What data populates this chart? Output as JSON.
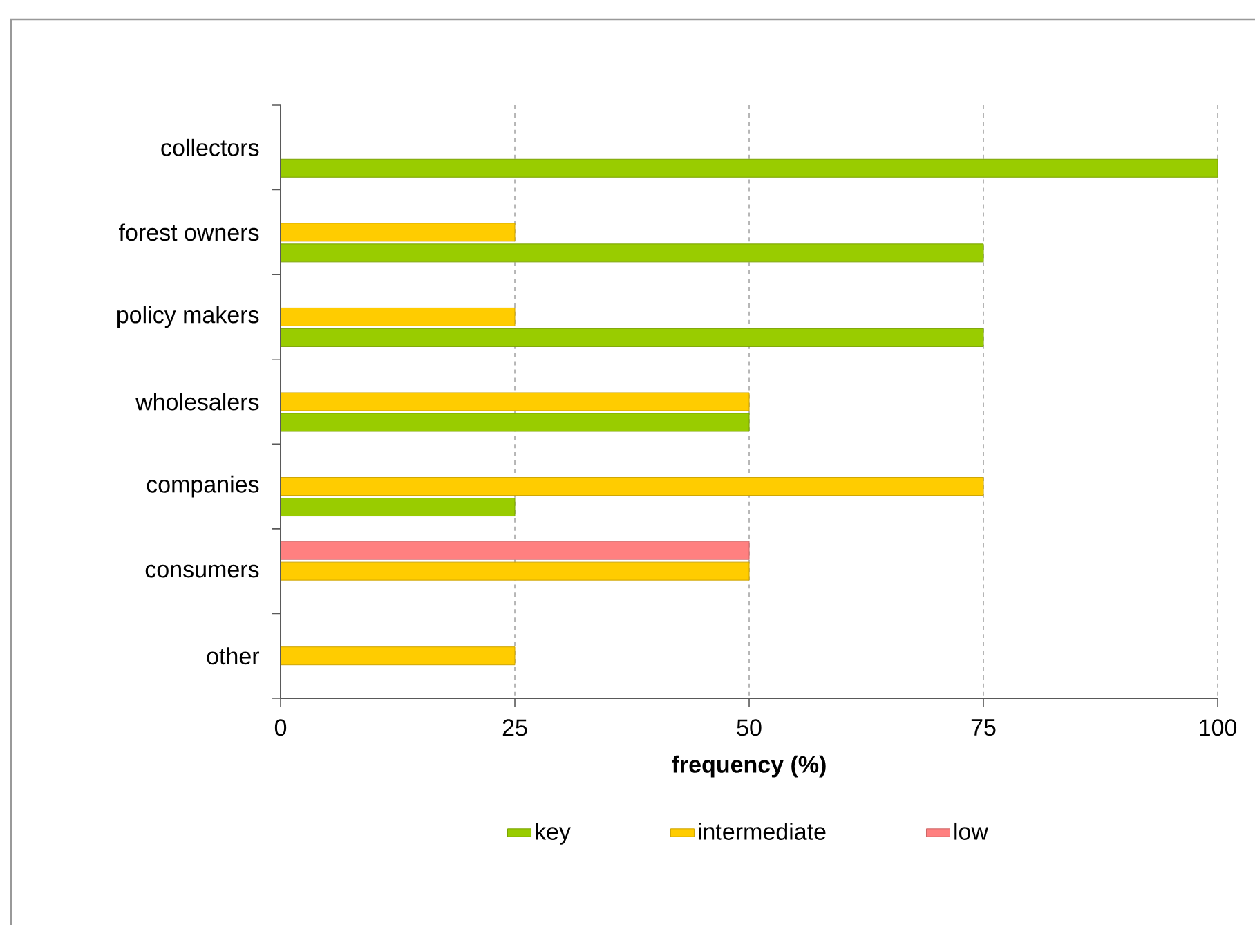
{
  "chart_data": {
    "type": "bar",
    "orientation": "horizontal",
    "xlabel": "frequency (%)",
    "categories": [
      "collectors",
      "forest owners",
      "policy makers",
      "wholesalers",
      "companies",
      "consumers",
      "other"
    ],
    "series": [
      {
        "name": "key",
        "color": "#99cc00",
        "values": [
          100,
          75,
          75,
          50,
          25,
          null,
          null
        ]
      },
      {
        "name": "intermediate",
        "color": "#ffcc00",
        "values": [
          null,
          25,
          25,
          50,
          75,
          50,
          25
        ]
      },
      {
        "name": "low",
        "color": "#ff8080",
        "values": [
          null,
          null,
          null,
          null,
          null,
          50,
          null
        ]
      }
    ],
    "xlim": [
      0,
      100
    ],
    "xticks": [
      0,
      25,
      50,
      75,
      100
    ],
    "grid": "x",
    "legend": "bottom"
  }
}
